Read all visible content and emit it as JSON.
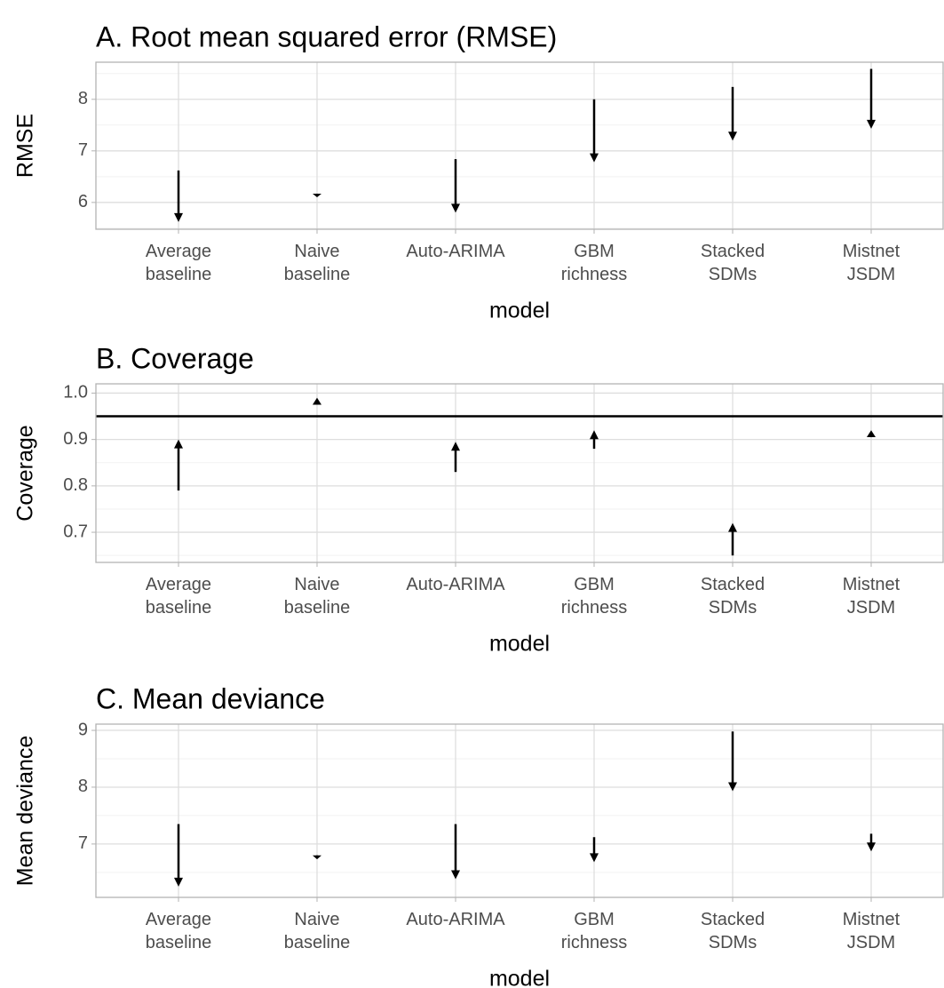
{
  "chart_data": [
    {
      "type": "arrow",
      "title": "A. Root mean squared error (RMSE)",
      "x_label": "model",
      "y_label": "RMSE",
      "categories": [
        "Average baseline",
        "Naive baseline",
        "Auto-ARIMA",
        "GBM richness",
        "Stacked SDMs",
        "Mistnet JSDM"
      ],
      "start": [
        6.62,
        6.17,
        6.84,
        8.0,
        8.24,
        8.59
      ],
      "end": [
        5.62,
        6.1,
        5.8,
        6.78,
        7.2,
        7.43
      ],
      "color": "#000000",
      "ylim": [
        5.48,
        8.72
      ],
      "yticks": [
        6,
        7,
        8
      ],
      "minor_yticks": [
        5.5,
        6.5,
        7.5,
        8.5
      ],
      "grid": true
    },
    {
      "type": "arrow",
      "title": "B. Coverage",
      "x_label": "model",
      "y_label": "Coverage",
      "categories": [
        "Average baseline",
        "Naive baseline",
        "Auto-ARIMA",
        "GBM richness",
        "Stacked SDMs",
        "Mistnet JSDM"
      ],
      "start": [
        0.79,
        0.975,
        0.83,
        0.88,
        0.65,
        0.905
      ],
      "end": [
        0.9,
        0.99,
        0.895,
        0.92,
        0.72,
        0.92
      ],
      "color": "#000000",
      "ylim": [
        0.635,
        1.02
      ],
      "yticks": [
        0.7,
        0.8,
        0.9,
        {
          "value": 1.0,
          "label": "1.0"
        }
      ],
      "minor_yticks": [
        0.65,
        0.75,
        0.85,
        0.95
      ],
      "grid": true,
      "hline": 0.95
    },
    {
      "type": "arrow",
      "title": "C. Mean deviance",
      "x_label": "model",
      "y_label": "Mean deviance",
      "categories": [
        "Average baseline",
        "Naive baseline",
        "Auto-ARIMA",
        "GBM richness",
        "Stacked SDMs",
        "Mistnet JSDM"
      ],
      "start": [
        7.35,
        6.8,
        7.35,
        7.12,
        8.98,
        7.18
      ],
      "end": [
        6.25,
        6.73,
        6.38,
        6.68,
        7.93,
        6.87
      ],
      "color": "#000000",
      "ylim": [
        6.06,
        9.11
      ],
      "yticks": [
        7,
        8,
        9
      ],
      "minor_yticks": [
        6.5,
        7.5,
        8.5
      ],
      "grid": true
    }
  ]
}
